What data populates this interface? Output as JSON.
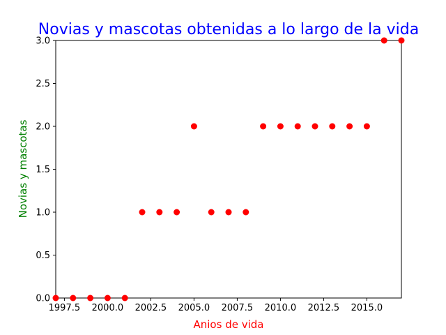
{
  "chart_data": {
    "type": "scatter",
    "title": "Novias y mascotas obtenidas a lo largo de la vida",
    "xlabel": "Anios de vida",
    "ylabel": "Novias y mascotas",
    "xlim": [
      1997,
      2017
    ],
    "ylim": [
      0,
      3
    ],
    "xticks": [
      "1997.5",
      "2000.0",
      "2002.5",
      "2005.0",
      "2007.5",
      "2010.0",
      "2012.5",
      "2015.0"
    ],
    "yticks": [
      "0.0",
      "0.5",
      "1.0",
      "1.5",
      "2.0",
      "2.5",
      "3.0"
    ],
    "grid": false,
    "series": [
      {
        "x": [
          1997,
          1998,
          1999,
          2000,
          2001,
          2002,
          2003,
          2004,
          2005,
          2006,
          2007,
          2008,
          2009,
          2010,
          2011,
          2012,
          2013,
          2014,
          2015,
          2016,
          2017
        ],
        "y": [
          0,
          0,
          0,
          0,
          0,
          1,
          1,
          1,
          2,
          1,
          1,
          1,
          2,
          2,
          2,
          2,
          2,
          2,
          2,
          3,
          3
        ]
      }
    ],
    "colors": {
      "points": "#ff0000",
      "title": "#0000ff",
      "xlabel": "#ff0000",
      "ylabel": "#008000",
      "axes": "#000000"
    }
  }
}
